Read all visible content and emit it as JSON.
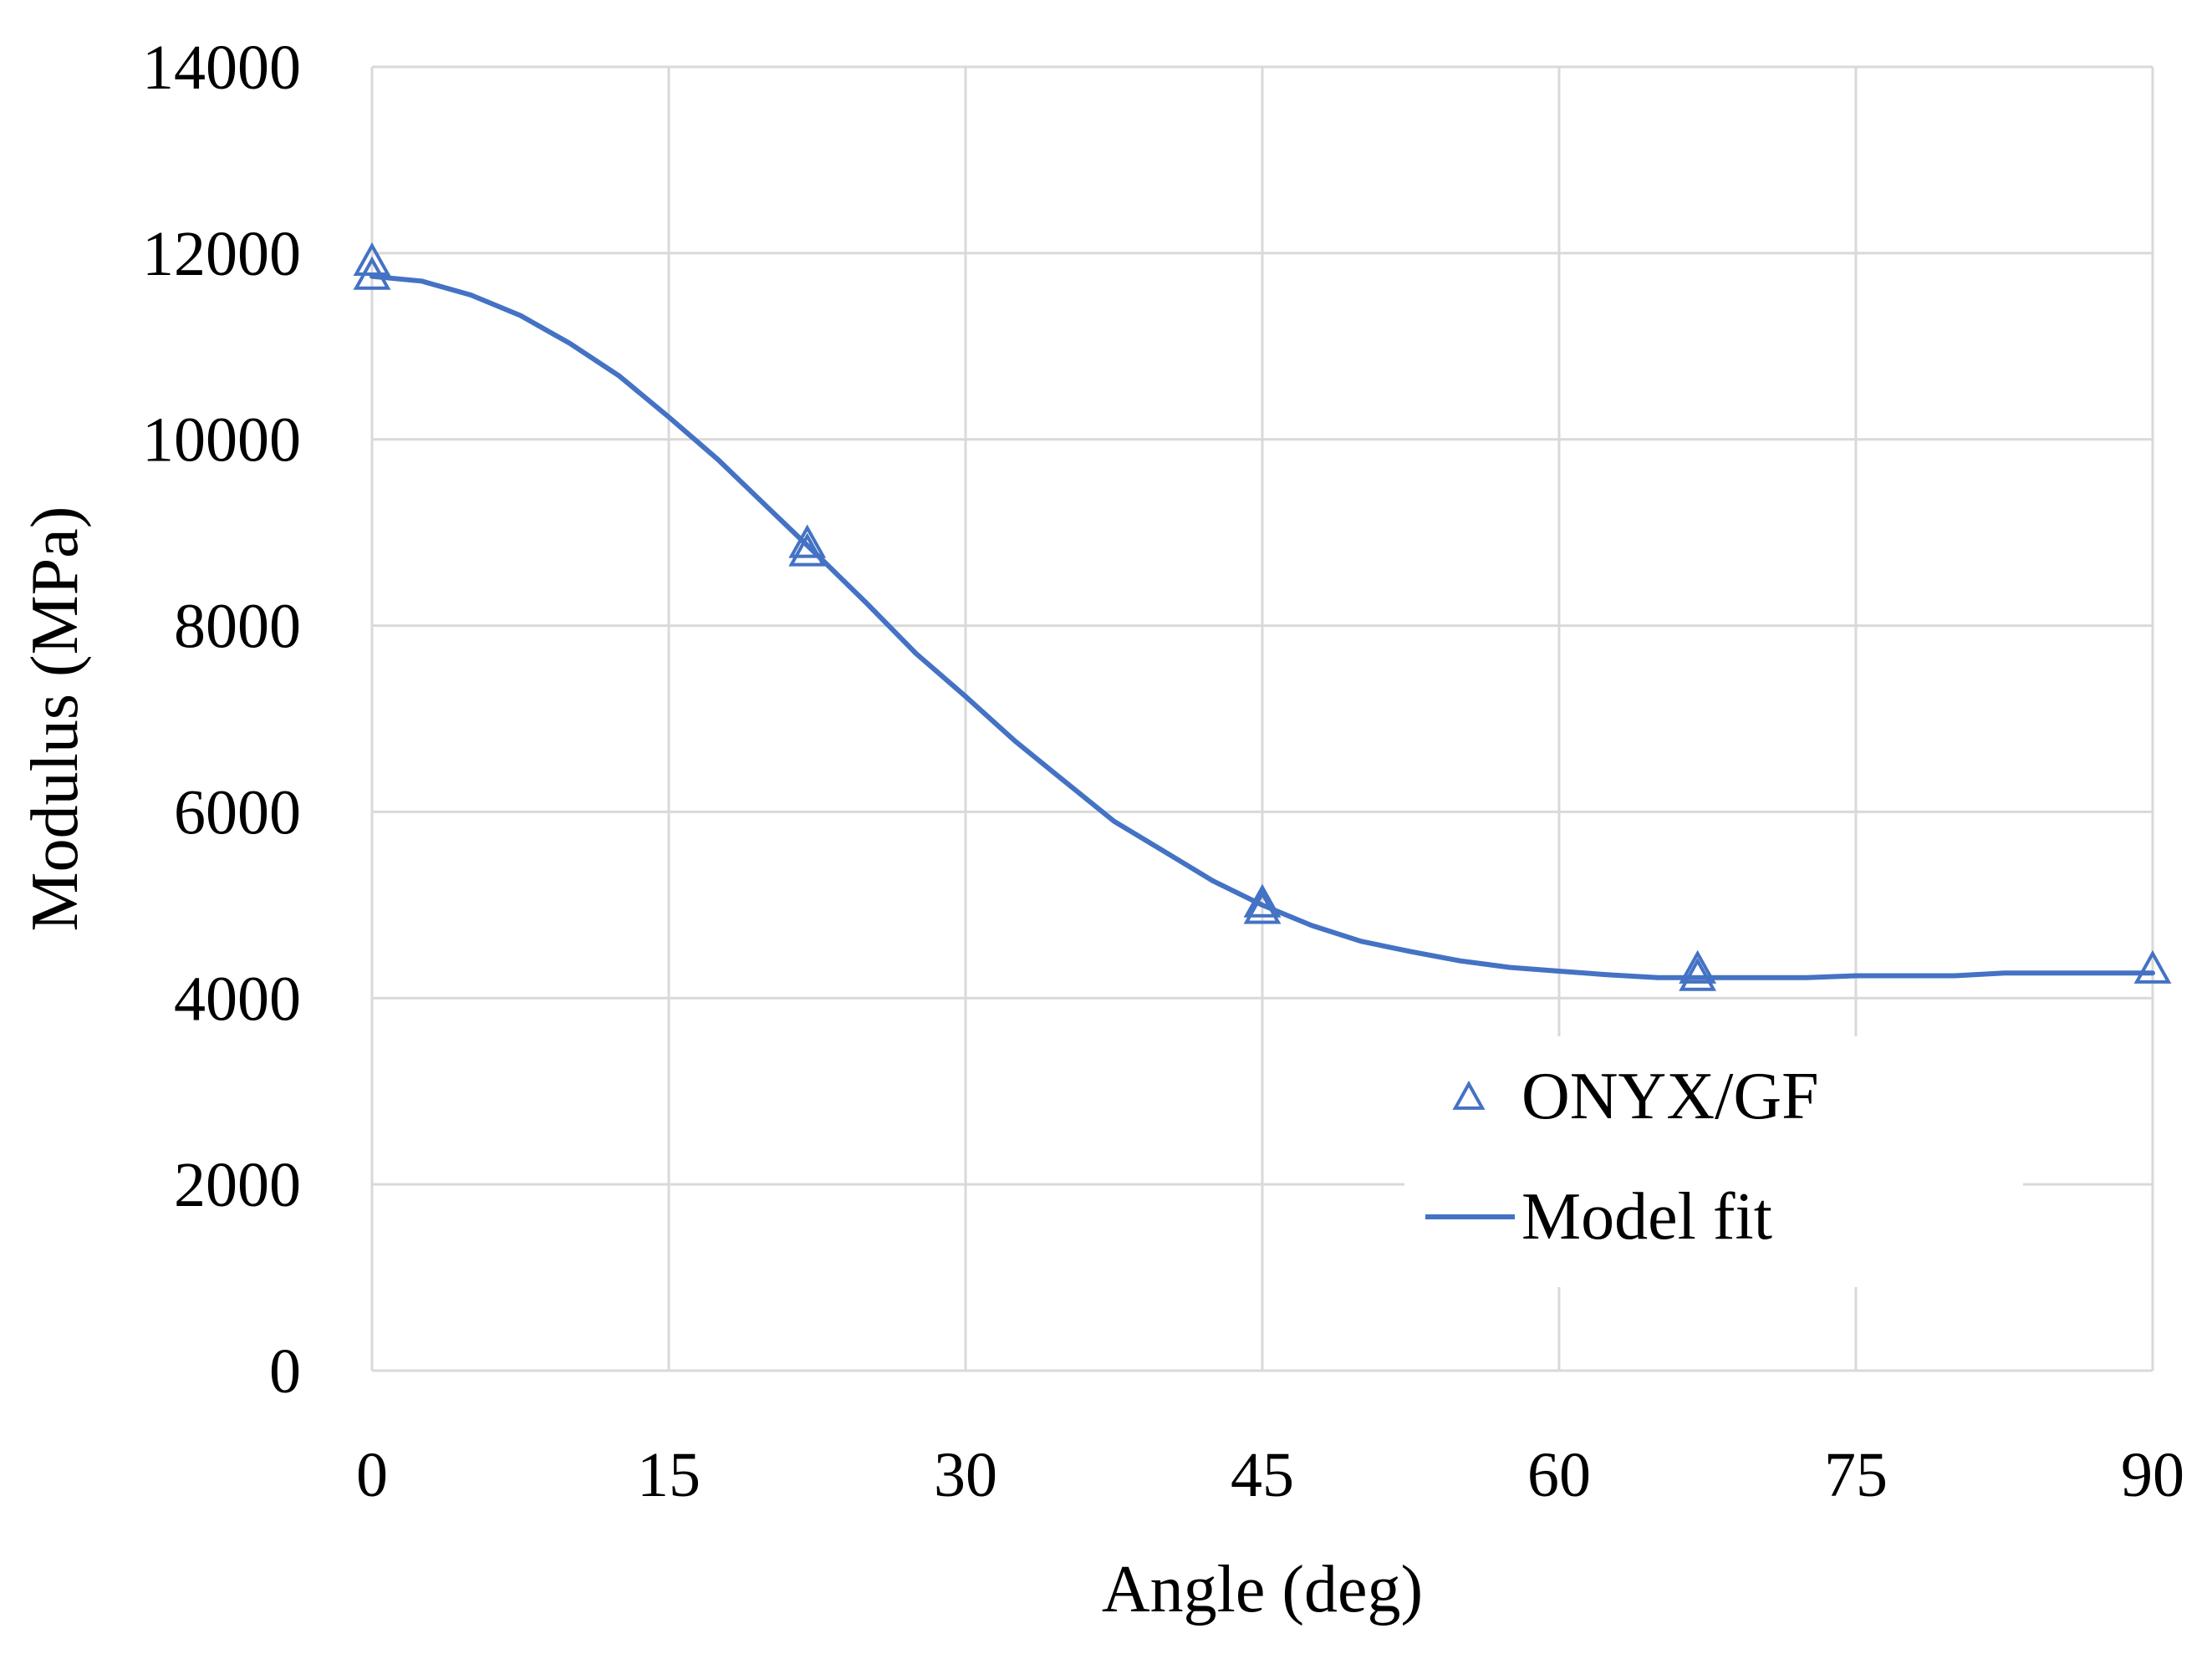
{
  "chart_data": {
    "type": "scatter",
    "title": "",
    "xlabel": "Angle (deg)",
    "ylabel": "Modulus (MPa)",
    "xlim": [
      0,
      90
    ],
    "ylim": [
      0,
      14000
    ],
    "x_ticks": [
      0,
      15,
      30,
      45,
      60,
      75,
      90
    ],
    "y_ticks": [
      0,
      2000,
      4000,
      6000,
      8000,
      10000,
      12000,
      14000
    ],
    "x_tick_labels": [
      "0",
      "15",
      "30",
      "45",
      "60",
      "75",
      "90"
    ],
    "y_tick_labels": [
      "0",
      "2000",
      "4000",
      "6000",
      "8000",
      "10000",
      "12000",
      "14000"
    ],
    "grid": true,
    "legend_position": "right",
    "series": [
      {
        "name": "ONYX/GF",
        "kind": "markers",
        "marker": "triangle-open",
        "color": "#4472c4",
        "x": [
          0,
          0,
          22,
          22,
          45,
          45,
          67,
          67,
          90
        ],
        "y": [
          11900,
          11750,
          8870,
          8780,
          5010,
          4940,
          4300,
          4220,
          4300
        ]
      },
      {
        "name": "Model fit",
        "kind": "line",
        "color": "#4472c4",
        "x": [
          0,
          2.5,
          5,
          7.5,
          10,
          12.5,
          15,
          17.5,
          20,
          22.5,
          25,
          27.5,
          30,
          32.5,
          35,
          37.5,
          40,
          42.5,
          45,
          47.5,
          50,
          52.5,
          55,
          57.5,
          60,
          62.5,
          65,
          67.5,
          70,
          72.5,
          75,
          77.5,
          80,
          82.5,
          85,
          87.5,
          90
        ],
        "y": [
          11750,
          11700,
          11550,
          11330,
          11030,
          10680,
          10240,
          9780,
          9270,
          8760,
          8240,
          7700,
          7240,
          6760,
          6330,
          5900,
          5580,
          5260,
          5000,
          4780,
          4610,
          4500,
          4400,
          4330,
          4290,
          4250,
          4220,
          4220,
          4220,
          4220,
          4240,
          4240,
          4240,
          4270,
          4270,
          4270,
          4270
        ]
      }
    ]
  }
}
